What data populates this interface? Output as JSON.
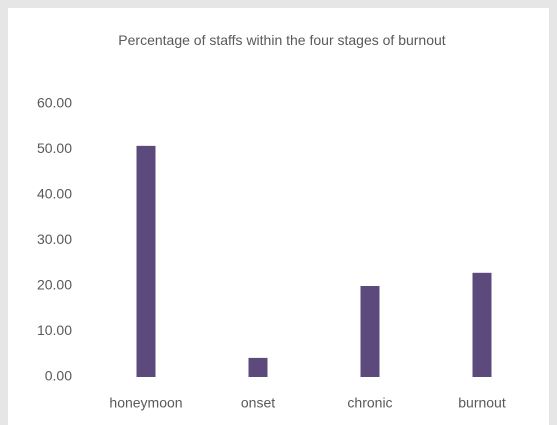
{
  "chart_data": {
    "type": "bar",
    "title": "Percentage of staffs within the four stages of burnout",
    "categories": [
      "honeymoon",
      "onset",
      "chronic",
      "burnout"
    ],
    "values": [
      50.8,
      4.2,
      20.0,
      22.9
    ],
    "color": "#5c4a7d",
    "ylim": [
      0,
      60
    ],
    "yticks": [
      {
        "value": 0,
        "label": "0.00"
      },
      {
        "value": 10,
        "label": "10.00"
      },
      {
        "value": 20,
        "label": "20.00"
      },
      {
        "value": 30,
        "label": "30.00"
      },
      {
        "value": 40,
        "label": "40.00"
      },
      {
        "value": 50,
        "label": "50.00"
      },
      {
        "value": 60,
        "label": "60.00"
      }
    ],
    "grid": false
  }
}
